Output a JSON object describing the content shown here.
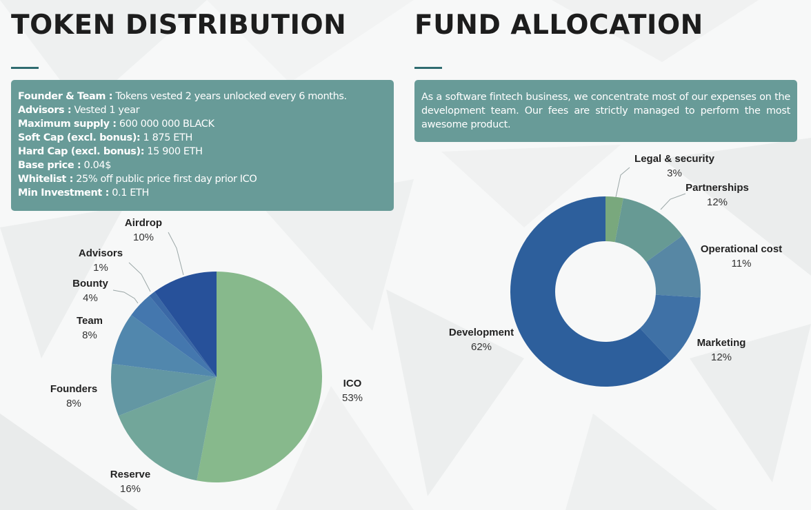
{
  "token_distribution": {
    "title": "TOKEN DISTRIBUTION",
    "info": [
      {
        "label": "Founder & Team :",
        "value": " Tokens vested 2 years unlocked every 6 months."
      },
      {
        "label": "Advisors :",
        "value": " Vested 1 year"
      },
      {
        "label": "Maximum supply :",
        "value": " 600 000 000 BLACK"
      },
      {
        "label": "Soft Cap (excl. bonus):",
        "value": " 1 875 ETH"
      },
      {
        "label": "Hard Cap (excl. bonus):",
        "value": " 15 900 ETH"
      },
      {
        "label": "Base price :",
        "value": " 0.04$"
      },
      {
        "label": "Whitelist :",
        "value": " 25% off public price first day prior ICO"
      },
      {
        "label": "Min Investment :",
        "value": " 0.1 ETH"
      }
    ]
  },
  "fund_allocation": {
    "title": "FUND ALLOCATION",
    "description": "As a software fintech business, we concentrate most of our expenses on the development team. Our fees are strictly managed to perform the most awesome product."
  },
  "colors": {
    "info_box": "#689b98",
    "title": "#1d1d1d",
    "rule": "#2e6b70"
  },
  "chart_data": [
    {
      "type": "pie",
      "title": "",
      "categories": [
        "ICO",
        "Reserve",
        "Founders",
        "Team",
        "Bounty",
        "Advisors",
        "Airdrop"
      ],
      "values": [
        53,
        16,
        8,
        8,
        4,
        1,
        10
      ],
      "labels": [
        "53%",
        "16%",
        "8%",
        "8%",
        "4%",
        "1%",
        "10%"
      ],
      "colors": [
        "#87b98c",
        "#72a69a",
        "#6397a3",
        "#5187ad",
        "#4477ae",
        "#3a68a6",
        "#27519a"
      ],
      "start": "12 o'clock",
      "direction": "clockwise",
      "legend": "none (slices labeled directly)"
    },
    {
      "type": "pie",
      "variant": "donut",
      "title": "",
      "categories": [
        "Legal & security",
        "Partnerships",
        "Operational cost",
        "Marketing",
        "Development"
      ],
      "values": [
        3,
        12,
        11,
        12,
        62
      ],
      "labels": [
        "3%",
        "12%",
        "11%",
        "12%",
        "62%"
      ],
      "colors": [
        "#79a87d",
        "#679a94",
        "#5787a4",
        "#3f71a6",
        "#2d5f9c"
      ],
      "start": "12 o'clock",
      "direction": "clockwise",
      "legend": "none (slices labeled directly)"
    }
  ]
}
